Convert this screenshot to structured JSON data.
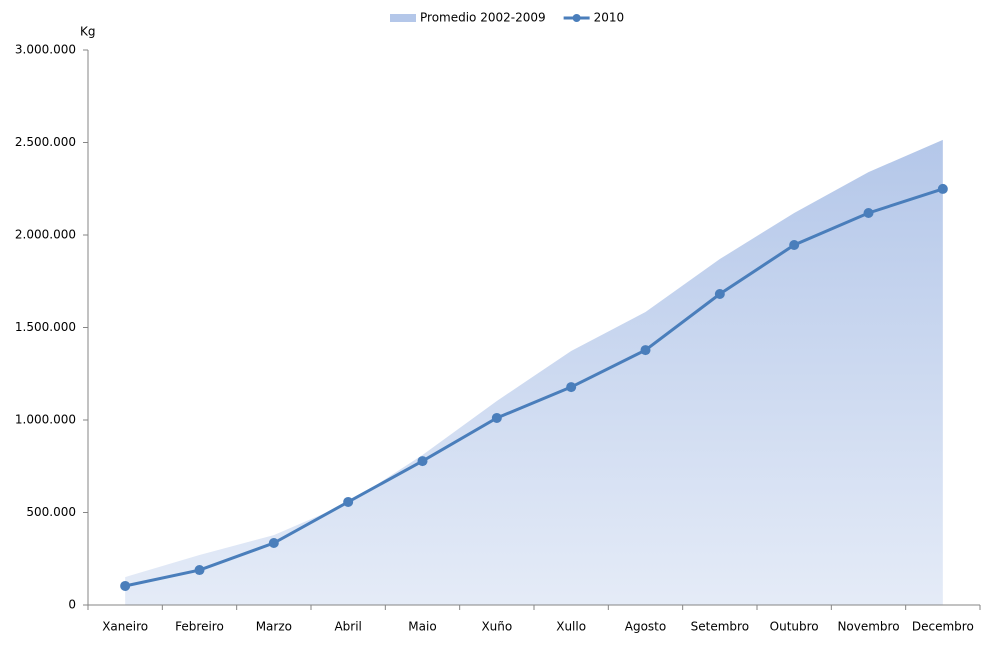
{
  "chart_data": {
    "type": "area-line",
    "y_label": "Kg",
    "categories": [
      "Xaneiro",
      "Febreiro",
      "Marzo",
      "Abril",
      "Maio",
      "Xuño",
      "Xullo",
      "Agosto",
      "Setembro",
      "Outubro",
      "Novembro",
      "Decembro"
    ],
    "series": [
      {
        "name": "Promedio 2002-2009",
        "kind": "area",
        "color": "#b4c7e9",
        "values": [
          151000,
          270000,
          378000,
          551000,
          811000,
          1103000,
          1373000,
          1584000,
          1870000,
          2119000,
          2340000,
          2514000
        ]
      },
      {
        "name": "2010",
        "kind": "line",
        "color": "#4a7ebb",
        "values": [
          103000,
          189000,
          335000,
          557000,
          778000,
          1011000,
          1178000,
          1378000,
          1681000,
          1946000,
          2119000,
          2249000
        ]
      }
    ],
    "ylim": [
      0,
      3000000
    ],
    "yticks": [
      0,
      {
        "value": 500000,
        "label": "500.000"
      },
      {
        "value": 1000000,
        "label": "1.000.000"
      },
      {
        "value": 1500000,
        "label": "1.500.000"
      },
      {
        "value": 2000000,
        "label": "2.000.000"
      },
      {
        "value": 2500000,
        "label": "2.500.000"
      },
      {
        "value": 3000000,
        "label": "3.000.000"
      }
    ],
    "legend": "top"
  }
}
